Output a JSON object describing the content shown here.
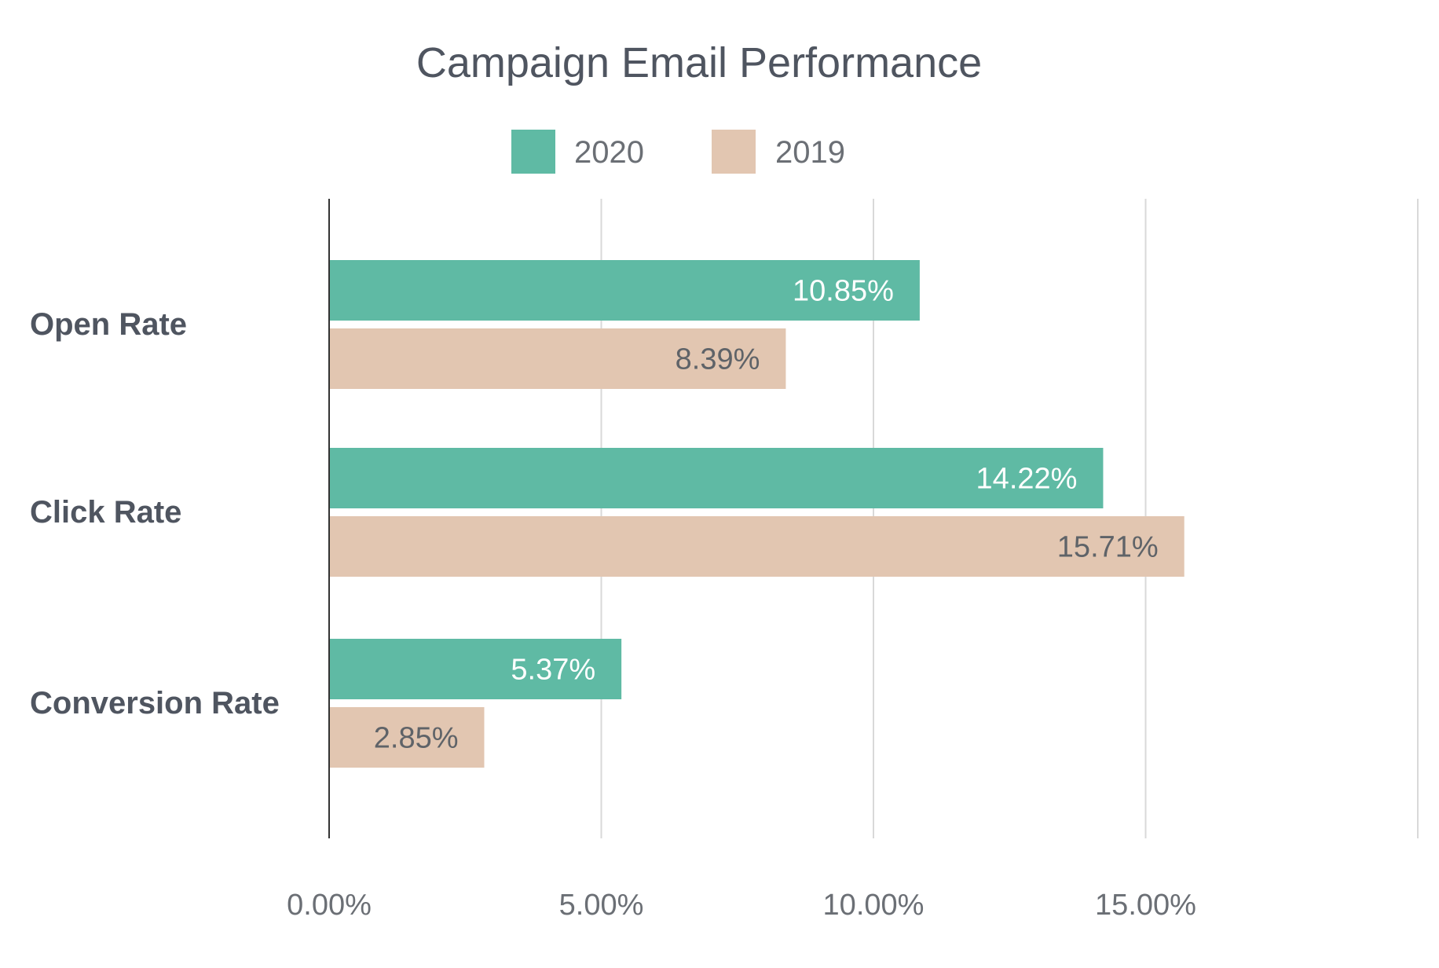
{
  "chart_data": {
    "type": "bar",
    "orientation": "horizontal",
    "title": "Campaign Email Performance",
    "categories": [
      "Open Rate",
      "Click Rate",
      "Conversion Rate"
    ],
    "series": [
      {
        "name": "2020",
        "color": "#5fbaa4",
        "label_color": "#ffffff",
        "values": [
          10.85,
          14.22,
          5.37
        ]
      },
      {
        "name": "2019",
        "color": "#e2c6b1",
        "label_color": "#5f6368",
        "values": [
          8.39,
          15.71,
          2.85
        ]
      }
    ],
    "data_labels": [
      [
        "10.85%",
        "14.22%",
        "5.37%"
      ],
      [
        "8.39%",
        "15.71%",
        "2.85%"
      ]
    ],
    "x_ticks": [
      0,
      5,
      10,
      15
    ],
    "x_tick_labels": [
      "0.00%",
      "5.00%",
      "10.00%",
      "15.00%"
    ],
    "xlim": [
      0,
      20
    ],
    "xlabel": "",
    "ylabel": "",
    "grid": true,
    "legend_position": "top-center",
    "colors": {
      "text_dark": "#4f5560",
      "text_tick": "#6b6f75",
      "grid": "#d9d9d9",
      "axis": "#333333"
    }
  }
}
